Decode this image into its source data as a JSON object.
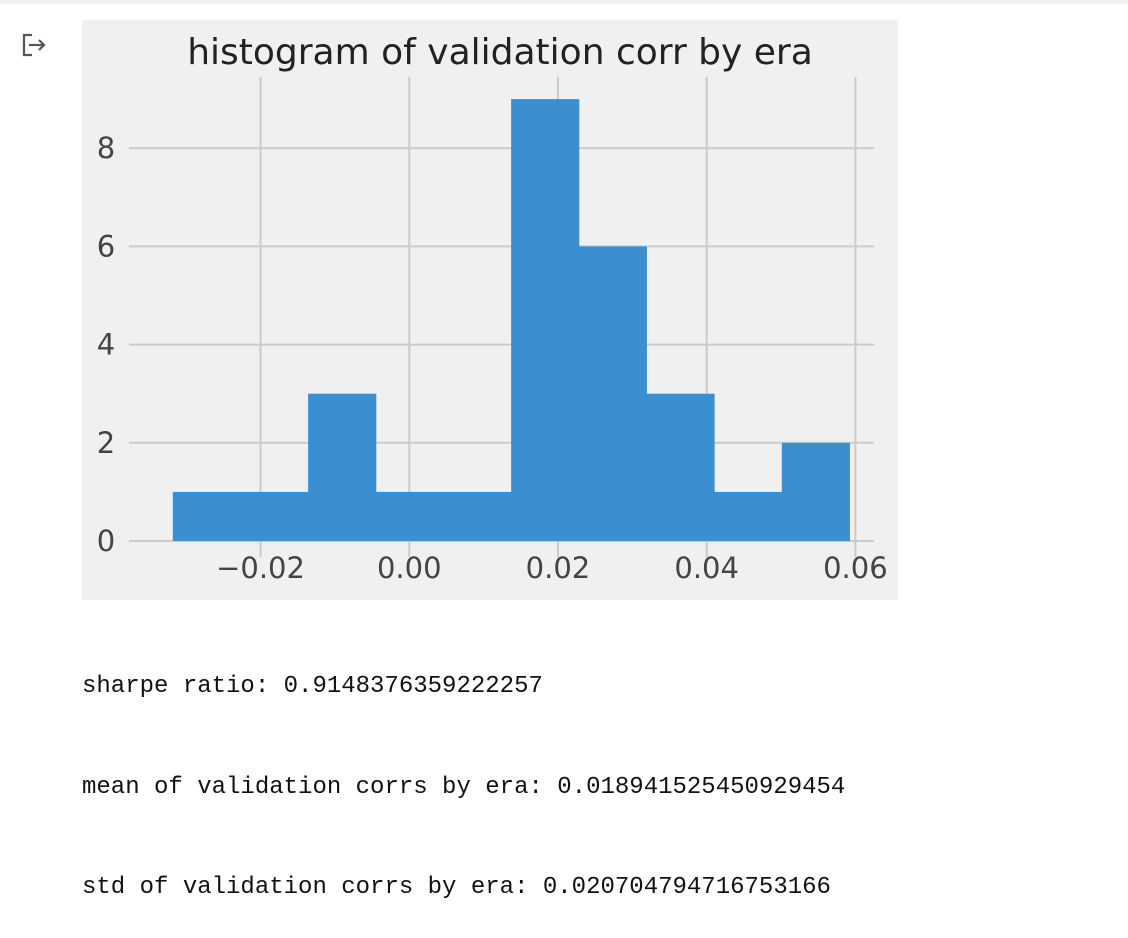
{
  "output_icon": "output-arrow-icon",
  "chart_data": {
    "type": "bar",
    "title": "histogram of validation corr by era",
    "xlabel": "",
    "ylabel": "",
    "xlim": [
      -0.035,
      0.0625
    ],
    "ylim": [
      0,
      9.45
    ],
    "x_ticks": [
      -0.02,
      0.0,
      0.02,
      0.04,
      0.06
    ],
    "x_tick_labels": [
      "−0.02",
      "0.00",
      "0.02",
      "0.04",
      "0.06"
    ],
    "y_ticks": [
      0,
      2,
      4,
      6,
      8
    ],
    "y_tick_labels": [
      "0",
      "2",
      "4",
      "6",
      "8"
    ],
    "grid": true,
    "bar_color": "#3b8fd1",
    "bin_edges": [
      -0.0318,
      -0.0227,
      -0.0136,
      -0.0045,
      0.0046,
      0.0137,
      0.0228,
      0.0319,
      0.041,
      0.0501,
      0.0592
    ],
    "counts": [
      1,
      1,
      3,
      1,
      1,
      9,
      6,
      3,
      1,
      2
    ]
  },
  "stdout": [
    "sharpe ratio: 0.9148376359222257",
    "mean of validation corrs by era: 0.018941525450929454",
    "std of validation corrs by era: 0.020704794716753166"
  ]
}
